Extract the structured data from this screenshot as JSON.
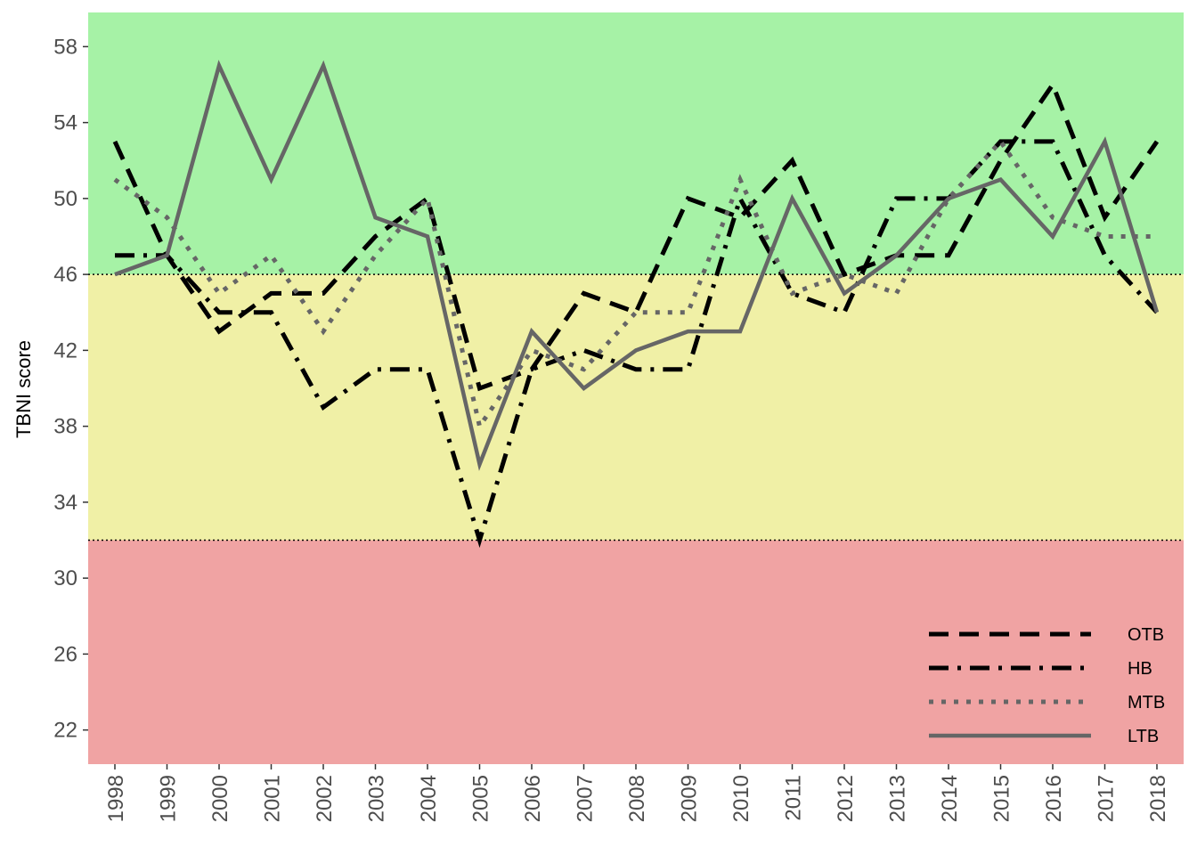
{
  "chart_data": {
    "type": "line",
    "title": "",
    "xlabel": "",
    "ylabel": "TBNI score",
    "x": [
      1998,
      1999,
      2000,
      2001,
      2002,
      2003,
      2004,
      2005,
      2006,
      2007,
      2008,
      2009,
      2010,
      2011,
      2012,
      2013,
      2014,
      2015,
      2016,
      2017,
      2018
    ],
    "xlim": [
      1998,
      2018
    ],
    "ylim": [
      20.2,
      59.8
    ],
    "yticks": [
      22,
      26,
      30,
      34,
      38,
      42,
      46,
      50,
      54,
      58
    ],
    "grid": false,
    "legend_position": "bottom-right",
    "bands": [
      {
        "from": 46,
        "to": 59.8,
        "color": "#a6f2a6"
      },
      {
        "from": 32,
        "to": 46,
        "color": "#f0f0a6"
      },
      {
        "from": 20.2,
        "to": 32,
        "color": "#f0a3a3"
      }
    ],
    "thresholds": [
      46,
      32
    ],
    "series": [
      {
        "name": "OTB",
        "style": "dashed",
        "color": "#000000",
        "values": [
          53,
          47,
          43,
          45,
          45,
          48,
          50,
          40,
          41,
          45,
          44,
          50,
          49,
          52,
          46,
          47,
          47,
          52,
          56,
          49,
          53
        ]
      },
      {
        "name": "HB",
        "style": "dashdot",
        "color": "#000000",
        "values": [
          47,
          47,
          44,
          44,
          39,
          41,
          41,
          32,
          41,
          42,
          41,
          41,
          50,
          45,
          44,
          50,
          50,
          53,
          53,
          47,
          44
        ]
      },
      {
        "name": "MTB",
        "style": "dotted",
        "color": "#666666",
        "values": [
          51,
          49,
          45,
          47,
          43,
          47,
          50,
          38,
          42,
          41,
          44,
          44,
          51,
          45,
          46,
          45,
          50,
          53,
          49,
          48,
          48
        ]
      },
      {
        "name": "LTB",
        "style": "solid",
        "color": "#666666",
        "values": [
          46,
          47,
          57,
          51,
          57,
          49,
          48,
          36,
          43,
          40,
          42,
          43,
          43,
          50,
          45,
          47,
          50,
          51,
          48,
          53,
          44
        ]
      }
    ]
  }
}
